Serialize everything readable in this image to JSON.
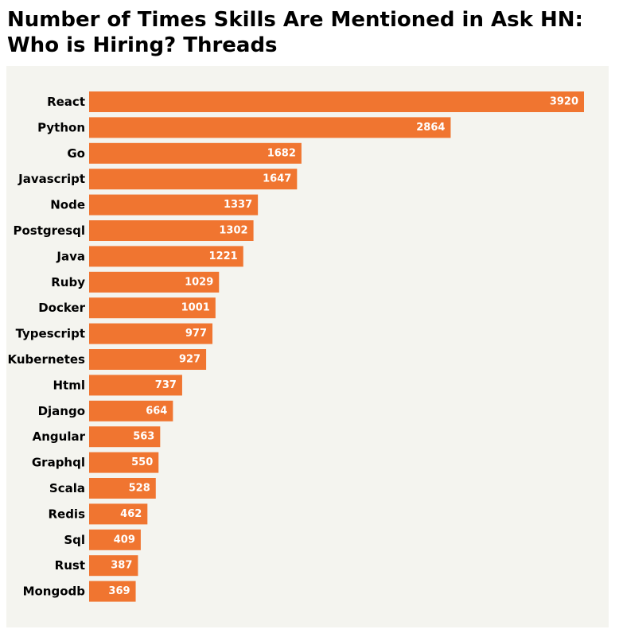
{
  "chart_data": {
    "type": "bar",
    "orientation": "horizontal",
    "title": "Number of Times Skills Are Mentioned in Ask HN: Who is Hiring? Threads",
    "xlabel": "",
    "ylabel": "",
    "categories": [
      "React",
      "Python",
      "Go",
      "Javascript",
      "Node",
      "Postgresql",
      "Java",
      "Ruby",
      "Docker",
      "Typescript",
      "Kubernetes",
      "Html",
      "Django",
      "Angular",
      "Graphql",
      "Scala",
      "Redis",
      "Sql",
      "Rust",
      "Mongodb"
    ],
    "values": [
      3920,
      2864,
      1682,
      1647,
      1337,
      1302,
      1221,
      1029,
      1001,
      977,
      927,
      737,
      664,
      563,
      550,
      528,
      462,
      409,
      387,
      369
    ],
    "xlim": [
      0,
      3920
    ],
    "grid": false,
    "legend": "none",
    "data_labels": "inside-end",
    "colors": {
      "bar": "#f07530",
      "plot_background": "#f4f4ef",
      "label_text": "#ffffff",
      "category_text": "#000000"
    }
  }
}
